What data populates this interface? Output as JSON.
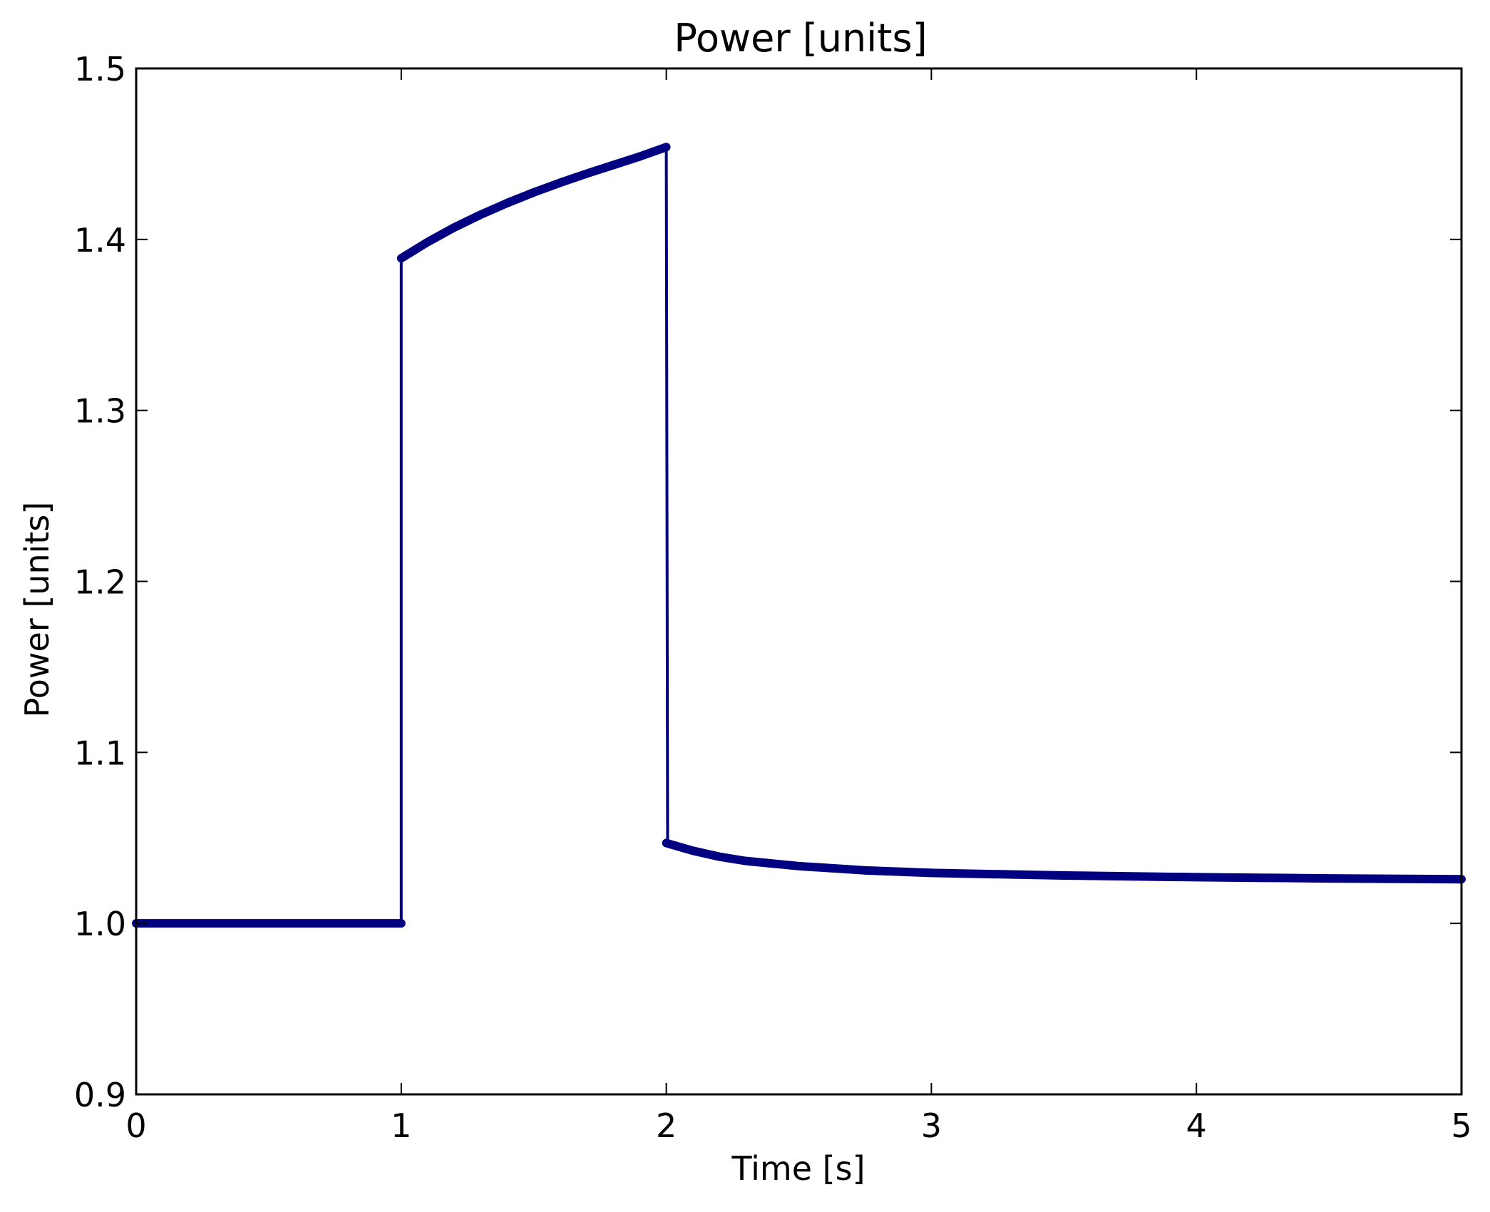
{
  "chart_data": {
    "type": "line",
    "title": "Power [units]",
    "xlabel": "Time [s]",
    "ylabel": "Power [units]",
    "xlim": [
      0,
      5
    ],
    "ylim": [
      0.9,
      1.5
    ],
    "xticks": [
      "0",
      "1",
      "2",
      "3",
      "4",
      "5"
    ],
    "yticks": [
      "0.9",
      "1.0",
      "1.1",
      "1.2",
      "1.3",
      "1.4",
      "1.5"
    ],
    "grid": false,
    "legend": false,
    "line_color": "#000080",
    "series": [
      {
        "segments": [
          {
            "style": "thick",
            "x": [
              0,
              1
            ],
            "y": [
              1.0,
              1.0
            ]
          },
          {
            "style": "thin",
            "x": [
              1,
              1
            ],
            "y": [
              1.0,
              1.389
            ]
          },
          {
            "style": "thick",
            "x": [
              1,
              1.1,
              1.2,
              1.3,
              1.4,
              1.5,
              1.6,
              1.7,
              1.8,
              1.9,
              2
            ],
            "y": [
              1.389,
              1.3985,
              1.407,
              1.4145,
              1.4213,
              1.4275,
              1.4332,
              1.4385,
              1.4435,
              1.4485,
              1.454
            ]
          },
          {
            "style": "thin",
            "x": [
              2,
              2.005
            ],
            "y": [
              1.454,
              1.047
            ]
          },
          {
            "style": "thick",
            "x": [
              2,
              2.1,
              2.2,
              2.3,
              2.5,
              2.75,
              3,
              3.5,
              4,
              4.5,
              5
            ],
            "y": [
              1.047,
              1.0425,
              1.039,
              1.0365,
              1.0335,
              1.031,
              1.0295,
              1.028,
              1.027,
              1.0263,
              1.0258
            ]
          }
        ]
      }
    ]
  }
}
